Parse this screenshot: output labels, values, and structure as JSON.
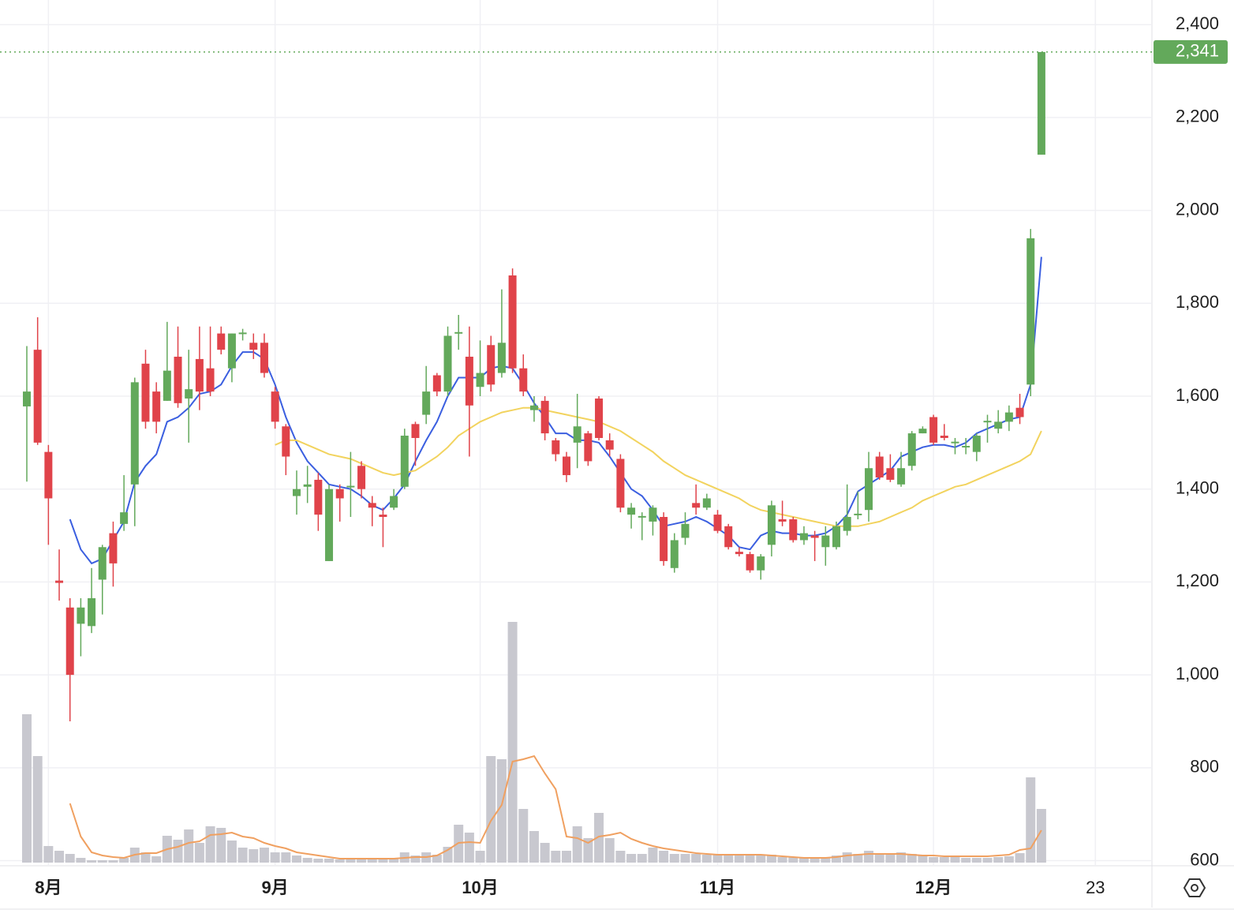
{
  "chart_data": {
    "type": "candlestick",
    "categories": [
      null,
      null,
      "8月",
      null,
      null,
      null,
      null,
      null,
      null,
      null,
      null,
      null,
      null,
      null,
      null,
      null,
      null,
      null,
      null,
      null,
      null,
      null,
      null,
      "9月",
      null,
      null,
      null,
      null,
      null,
      null,
      null,
      null,
      null,
      null,
      null,
      null,
      null,
      null,
      null,
      null,
      null,
      null,
      "10月",
      null,
      null,
      null,
      null,
      null,
      null,
      null,
      null,
      null,
      null,
      null,
      null,
      null,
      null,
      null,
      null,
      null,
      null,
      null,
      null,
      null,
      "11月",
      null,
      null,
      null,
      null,
      null,
      null,
      null,
      null,
      null,
      null,
      null,
      null,
      null,
      null,
      null,
      null,
      null,
      null,
      null,
      "12月",
      null,
      null,
      null,
      null,
      null,
      null,
      null,
      null,
      null,
      null,
      null,
      null,
      null,
      null,
      "23"
    ],
    "open": [
      1578,
      1700,
      1480,
      1203,
      1145,
      1110,
      1105,
      1205,
      1305,
      1325,
      1410,
      1670,
      1610,
      1590,
      1685,
      1595,
      1680,
      1660,
      1735,
      1660,
      1735,
      1715,
      1715,
      1610,
      1535,
      1385,
      1405,
      1420,
      1245,
      1400,
      1405,
      1450,
      1370,
      1345,
      1360,
      1405,
      1540,
      1560,
      1645,
      1610,
      1735,
      1685,
      1620,
      1710,
      1650,
      1860,
      1660,
      1570,
      1590,
      1505,
      1470,
      1500,
      1520,
      1595,
      1505,
      1465,
      1345,
      1340,
      1330,
      1340,
      1230,
      1295,
      1370,
      1360,
      1345,
      1320,
      1265,
      1260,
      1225,
      1280,
      1335,
      1335,
      1290,
      1300,
      1275,
      1275,
      1310,
      1345,
      1355,
      1470,
      1445,
      1410,
      1450,
      1520,
      1555,
      1515,
      1500,
      1490,
      1480,
      1545,
      1530,
      1545,
      1575,
      1625,
      2120,
      null,
      null,
      null,
      null,
      null
    ],
    "high": [
      1708,
      1770,
      1495,
      1270,
      1165,
      1165,
      1230,
      1280,
      1330,
      1430,
      1640,
      1700,
      1630,
      1760,
      1750,
      1700,
      1750,
      1750,
      1750,
      1735,
      1745,
      1735,
      1735,
      1620,
      1540,
      1440,
      1450,
      1435,
      1410,
      1410,
      1480,
      1460,
      1385,
      1360,
      1400,
      1530,
      1545,
      1665,
      1650,
      1750,
      1775,
      1750,
      1720,
      1730,
      1830,
      1875,
      1690,
      1600,
      1600,
      1510,
      1480,
      1605,
      1525,
      1600,
      1520,
      1475,
      1370,
      1350,
      1365,
      1350,
      1305,
      1350,
      1410,
      1390,
      1355,
      1325,
      1275,
      1265,
      1260,
      1375,
      1375,
      1340,
      1320,
      1310,
      1320,
      1330,
      1410,
      1395,
      1480,
      1480,
      1475,
      1480,
      1525,
      1535,
      1560,
      1540,
      1510,
      1510,
      1520,
      1560,
      1570,
      1580,
      1605,
      1960,
      2341,
      null,
      null,
      null,
      null,
      null
    ],
    "low": [
      1416,
      1495,
      1280,
      1160,
      900,
      1040,
      1090,
      1130,
      1190,
      1310,
      1320,
      1530,
      1520,
      1590,
      1575,
      1500,
      1570,
      1600,
      1690,
      1630,
      1720,
      1680,
      1640,
      1530,
      1430,
      1345,
      1370,
      1310,
      1245,
      1330,
      1340,
      1380,
      1320,
      1275,
      1355,
      1400,
      1450,
      1540,
      1600,
      1600,
      1700,
      1470,
      1600,
      1610,
      1640,
      1650,
      1600,
      1545,
      1505,
      1460,
      1415,
      1445,
      1450,
      1505,
      1470,
      1350,
      1315,
      1290,
      1300,
      1235,
      1220,
      1280,
      1345,
      1355,
      1305,
      1270,
      1255,
      1220,
      1205,
      1255,
      1320,
      1285,
      1280,
      1245,
      1235,
      1270,
      1300,
      1335,
      1330,
      1420,
      1415,
      1405,
      1440,
      1520,
      1495,
      1505,
      1475,
      1475,
      1460,
      1500,
      1520,
      1525,
      1540,
      1600,
      2120,
      null,
      null,
      null,
      null,
      null
    ],
    "close": [
      1610,
      1500,
      1380,
      1198,
      1000,
      1145,
      1165,
      1275,
      1240,
      1350,
      1630,
      1545,
      1545,
      1655,
      1585,
      1615,
      1610,
      1610,
      1700,
      1735,
      1737,
      1700,
      1650,
      1545,
      1470,
      1400,
      1410,
      1345,
      1400,
      1380,
      1407,
      1400,
      1360,
      1340,
      1385,
      1515,
      1510,
      1610,
      1610,
      1730,
      1738,
      1580,
      1650,
      1625,
      1715,
      1660,
      1610,
      1580,
      1520,
      1475,
      1430,
      1535,
      1460,
      1510,
      1485,
      1360,
      1360,
      1342,
      1360,
      1245,
      1290,
      1325,
      1360,
      1380,
      1310,
      1275,
      1260,
      1225,
      1255,
      1365,
      1330,
      1290,
      1305,
      1295,
      1300,
      1320,
      1340,
      1347,
      1445,
      1425,
      1420,
      1445,
      1520,
      1530,
      1500,
      1510,
      1502,
      1493,
      1515,
      1547,
      1545,
      1565,
      1555,
      1940,
      2341,
      null,
      null,
      null,
      null,
      null
    ],
    "up_color": "#63a95b",
    "down_color": "#e0434a",
    "ma_lines": [
      {
        "color": "#3b5fe0",
        "values": [
          null,
          null,
          null,
          null,
          1335,
          1270,
          1240,
          1250,
          1290,
          1330,
          1415,
          1450,
          1475,
          1545,
          1555,
          1575,
          1605,
          1610,
          1625,
          1665,
          1695,
          1695,
          1680,
          1625,
          1555,
          1500,
          1460,
          1435,
          1410,
          1405,
          1400,
          1385,
          1365,
          1355,
          1380,
          1410,
          1460,
          1505,
          1545,
          1600,
          1640,
          1640,
          1640,
          1660,
          1665,
          1660,
          1625,
          1585,
          1555,
          1520,
          1520,
          1505,
          1505,
          1500,
          1470,
          1435,
          1400,
          1385,
          1355,
          1320,
          1325,
          1330,
          1340,
          1330,
          1315,
          1300,
          1275,
          1270,
          1300,
          1310,
          1305,
          1305,
          1300,
          1300,
          1305,
          1320,
          1345,
          1395,
          1410,
          1425,
          1440,
          1470,
          1480,
          1490,
          1495,
          1495,
          1490,
          1500,
          1520,
          1530,
          1540,
          1550,
          1555,
          1625,
          1900,
          null,
          null,
          null,
          null,
          null
        ]
      },
      {
        "color": "#f2d35e",
        "values": [
          null,
          null,
          null,
          null,
          null,
          null,
          null,
          null,
          null,
          null,
          null,
          null,
          null,
          null,
          null,
          null,
          null,
          null,
          null,
          null,
          null,
          null,
          null,
          1495,
          1505,
          1505,
          1495,
          1485,
          1475,
          1470,
          1465,
          1455,
          1445,
          1435,
          1430,
          1435,
          1440,
          1455,
          1470,
          1490,
          1515,
          1530,
          1545,
          1555,
          1565,
          1570,
          1575,
          1575,
          1570,
          1565,
          1560,
          1555,
          1550,
          1545,
          1535,
          1525,
          1510,
          1495,
          1480,
          1460,
          1445,
          1430,
          1420,
          1410,
          1400,
          1390,
          1380,
          1365,
          1355,
          1350,
          1345,
          1340,
          1335,
          1330,
          1325,
          1320,
          1320,
          1320,
          1325,
          1330,
          1340,
          1350,
          1360,
          1375,
          1385,
          1395,
          1405,
          1410,
          1420,
          1430,
          1440,
          1450,
          1460,
          1475,
          1525,
          null,
          null,
          null,
          null,
          null
        ]
      }
    ],
    "volume": [
      188,
      135,
      21,
      15,
      11,
      6,
      3,
      3,
      3,
      6,
      19,
      13,
      8,
      34,
      29,
      42,
      25,
      46,
      44,
      28,
      19,
      17,
      19,
      13,
      13,
      9,
      6,
      5,
      5,
      4,
      4,
      4,
      4,
      4,
      5,
      13,
      9,
      13,
      10,
      20,
      48,
      38,
      15,
      135,
      131,
      305,
      68,
      40,
      25,
      15,
      15,
      46,
      31,
      63,
      31,
      15,
      11,
      11,
      19,
      15,
      11,
      11,
      11,
      10,
      11,
      10,
      11,
      10,
      10,
      10,
      7,
      7,
      7,
      6,
      6,
      9,
      13,
      11,
      15,
      11,
      11,
      13,
      11,
      9,
      7,
      7,
      7,
      6,
      6,
      6,
      7,
      8,
      12,
      108,
      68,
      null,
      null,
      null,
      null,
      null
    ],
    "volume_color": "#c8c8cf",
    "volume_ma": {
      "color": "#f0a060",
      "values": [
        null,
        null,
        null,
        null,
        75,
        33,
        13,
        9,
        7,
        6,
        10,
        12,
        12,
        17,
        20,
        25,
        27,
        35,
        36,
        38,
        33,
        31,
        25,
        21,
        18,
        13,
        11,
        9,
        7,
        5,
        5,
        5,
        5,
        5,
        5,
        6,
        7,
        7,
        9,
        16,
        25,
        26,
        25,
        53,
        73,
        128,
        131,
        135,
        113,
        93,
        33,
        31,
        25,
        33,
        35,
        38,
        30,
        25,
        21,
        18,
        16,
        14,
        12,
        11,
        10,
        10,
        10,
        10,
        10,
        9,
        8,
        7,
        6,
        6,
        6,
        7,
        9,
        10,
        11,
        11,
        11,
        11,
        10,
        9,
        9,
        8,
        8,
        8,
        8,
        8,
        9,
        10,
        16,
        18,
        41,
        null,
        null,
        null,
        null,
        null
      ]
    },
    "vlim": [
      0,
      305
    ],
    "ylim": [
      589,
      2453
    ],
    "yticks": [
      {
        "value": 600,
        "label": "600"
      },
      {
        "value": 800,
        "label": "800"
      },
      {
        "value": 1000,
        "label": "1,000"
      },
      {
        "value": 1200,
        "label": "1,200"
      },
      {
        "value": 1400,
        "label": "1,400"
      },
      {
        "value": 1600,
        "label": "1,600"
      },
      {
        "value": 1800,
        "label": "1,800"
      },
      {
        "value": 2000,
        "label": "2,000"
      },
      {
        "value": 2200,
        "label": "2,200"
      },
      {
        "value": 2400,
        "label": "2,400"
      }
    ],
    "last_price": {
      "value": 2341,
      "label": "2,341"
    },
    "grid": true
  }
}
